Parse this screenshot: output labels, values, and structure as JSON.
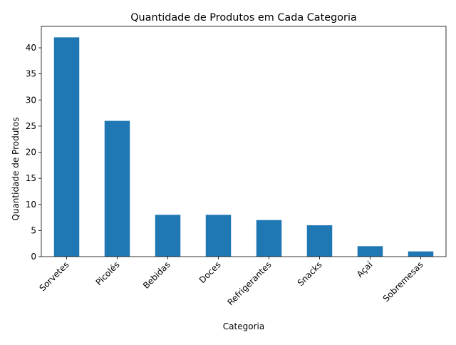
{
  "chart_data": {
    "type": "bar",
    "title": "Quantidade de Produtos em Cada Categoria",
    "xlabel": "Categoria",
    "ylabel": "Quantidade de Produtos",
    "categories": [
      "Sorvetes",
      "Picolés",
      "Bebidas",
      "Doces",
      "Refrigerantes",
      "Snacks",
      "Açaí",
      "Sobremesas"
    ],
    "values": [
      42,
      26,
      8,
      8,
      7,
      6,
      2,
      1
    ],
    "ylim": [
      0,
      44.1
    ],
    "yticks": [
      0,
      5,
      10,
      15,
      20,
      25,
      30,
      35,
      40
    ],
    "bar_color": "#1f77b4",
    "grid": false,
    "legend": "none",
    "x_tick_rotation": 45
  }
}
